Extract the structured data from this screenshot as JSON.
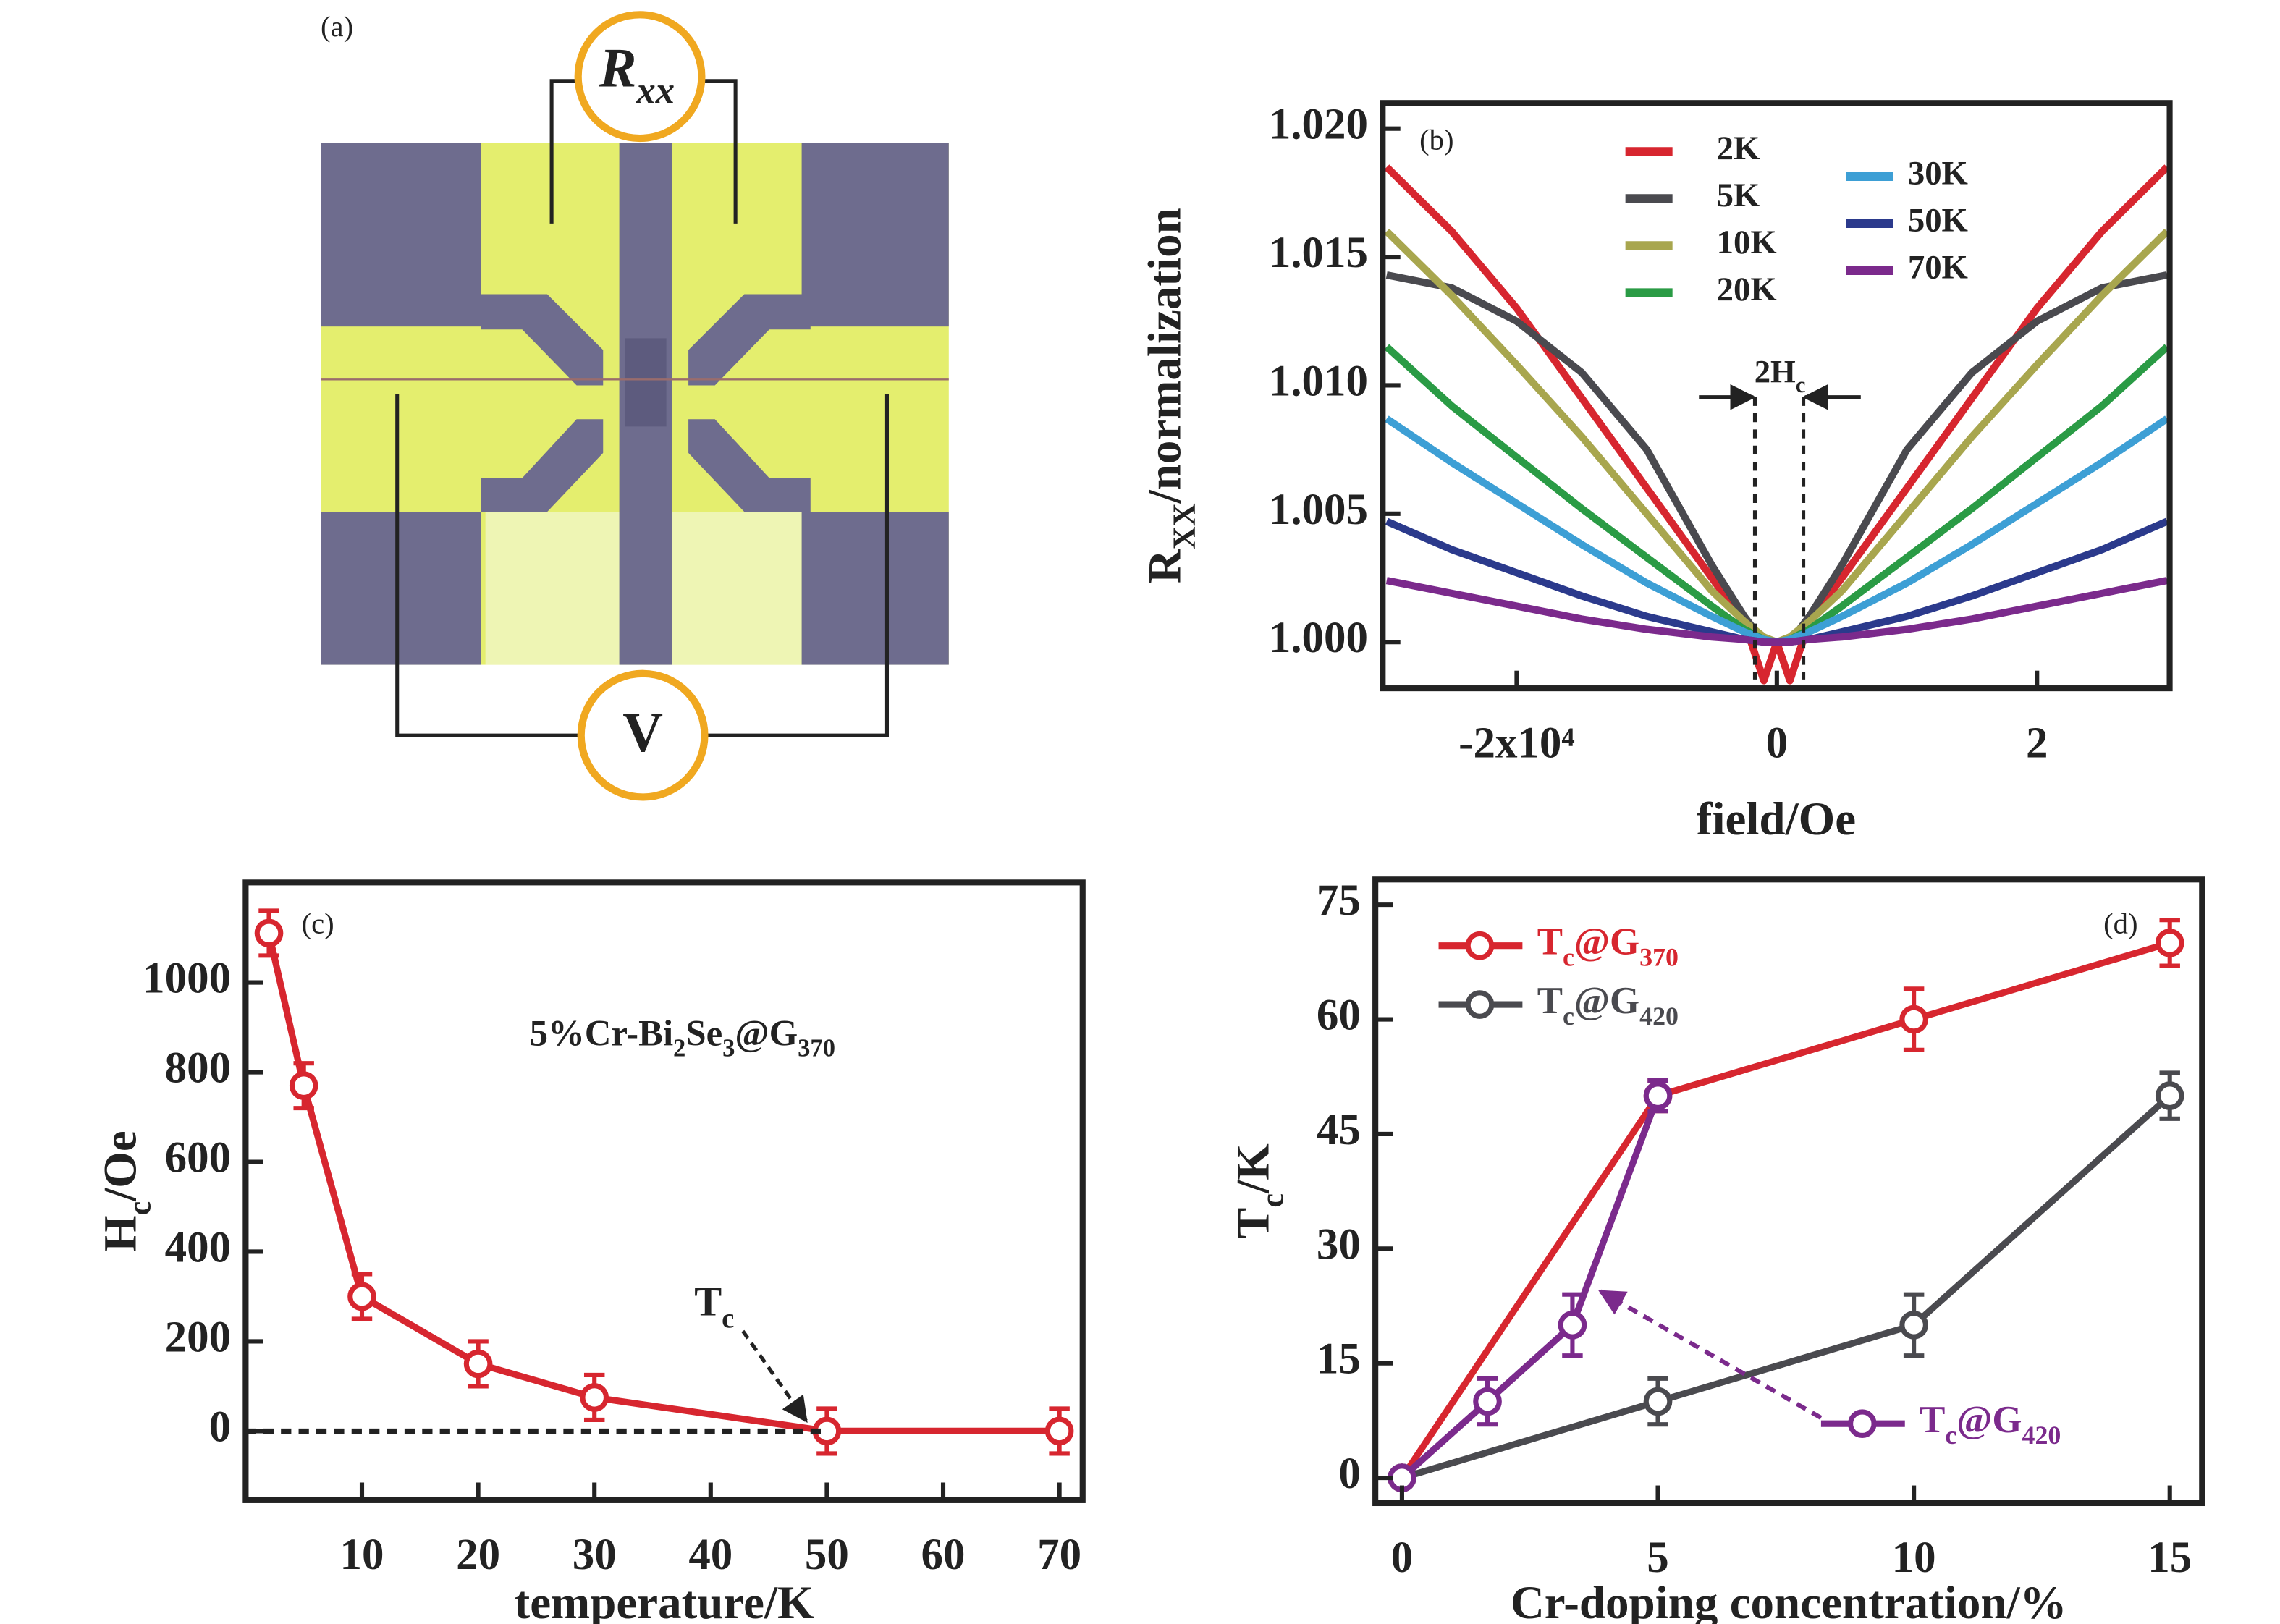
{
  "figure_a": {
    "panel_label": "(a)",
    "meters": [
      [
        "R",
        "xx"
      ],
      [
        "V"
      ]
    ]
  },
  "chart_data": [
    {
      "type": "line",
      "panel_label": "(b)",
      "xlabel": "field/Oe",
      "ylabel": [
        "R",
        "XX",
        "/normalization"
      ],
      "annotation": [
        "2H",
        "c"
      ],
      "xlim": [
        -30300,
        30200
      ],
      "ylim": [
        0.9982,
        1.021
      ],
      "xticks": [
        {
          "value": -20000,
          "label": "-2x10⁴"
        },
        0,
        {
          "value": 20000,
          "label": "2"
        }
      ],
      "yticks": [
        {
          "value": 1,
          "label": "1.000"
        },
        1.005,
        {
          "value": 1.01,
          "label": "1.010"
        },
        1.015,
        {
          "value": 1.02,
          "label": "1.020"
        }
      ],
      "x": [
        -30000,
        -25000,
        -20000,
        -15000,
        -10000,
        -5000,
        -2500,
        -1000,
        0,
        1000,
        2500,
        5000,
        10000,
        15000,
        20000,
        25000,
        30000
      ],
      "series": [
        {
          "name": "2K",
          "color": "#d7262f",
          "values": [
            1.0185,
            1.016,
            1.013,
            1.0095,
            1.006,
            1.0025,
            1.0008,
            0.9985,
            1.0,
            0.9985,
            1.0008,
            1.0025,
            1.006,
            1.0095,
            1.013,
            1.016,
            1.0185
          ]
        },
        {
          "name": "5K",
          "color": "#4a4a4f",
          "values": [
            1.0143,
            1.0138,
            1.0125,
            1.0105,
            1.0075,
            1.003,
            1.001,
            1.0,
            1.0,
            1.0,
            1.001,
            1.003,
            1.0075,
            1.0105,
            1.0125,
            1.0138,
            1.0143
          ]
        },
        {
          "name": "10K",
          "color": "#a8a64e",
          "values": [
            1.016,
            1.0135,
            1.0108,
            1.008,
            1.005,
            1.002,
            1.0008,
            1.0002,
            1.0,
            1.0002,
            1.0008,
            1.002,
            1.005,
            1.008,
            1.0108,
            1.0135,
            1.016
          ]
        },
        {
          "name": "20K",
          "color": "#2a9b45",
          "values": [
            1.0115,
            1.0092,
            1.0072,
            1.0052,
            1.0033,
            1.0014,
            1.0005,
            1.0001,
            1.0,
            1.0001,
            1.0005,
            1.0014,
            1.0033,
            1.0052,
            1.0072,
            1.0092,
            1.0115
          ]
        },
        {
          "name": "30K",
          "color": "#3d9fd5",
          "values": [
            1.0087,
            1.007,
            1.0054,
            1.0038,
            1.0023,
            1.001,
            1.0004,
            1.0001,
            1.0,
            1.0001,
            1.0004,
            1.001,
            1.0023,
            1.0038,
            1.0054,
            1.007,
            1.0087
          ]
        },
        {
          "name": "50K",
          "color": "#2b3a8c",
          "values": [
            1.0047,
            1.0036,
            1.0027,
            1.0018,
            1.001,
            1.0004,
            1.0001,
            1.0,
            1.0,
            1.0,
            1.0001,
            1.0004,
            1.001,
            1.0018,
            1.0027,
            1.0036,
            1.0047
          ]
        },
        {
          "name": "70K",
          "color": "#7b2a8c",
          "values": [
            1.0024,
            1.0019,
            1.0014,
            1.0009,
            1.0005,
            1.0002,
            1.0001,
            1.0,
            1.0,
            1.0,
            1.0001,
            1.0002,
            1.0005,
            1.0009,
            1.0014,
            1.0019,
            1.0024
          ]
        }
      ]
    },
    {
      "type": "errorbar_line",
      "panel_label": "(c)",
      "xlabel": "temperature/K",
      "ylabel": [
        "H",
        "c",
        "/Oe"
      ],
      "inset_label": [
        "5%Cr-Bi",
        "2",
        "Se",
        "3",
        "@G",
        "370"
      ],
      "annotation": [
        "T",
        "c"
      ],
      "reference_line": 0,
      "xlim": [
        0,
        72
      ],
      "ylim": [
        -154,
        1223
      ],
      "xticks": [
        10,
        20,
        30,
        40,
        50,
        60,
        70
      ],
      "yticks": [
        0,
        200,
        400,
        600,
        800,
        1000
      ],
      "series": [
        {
          "color": "#d7262f",
          "x": [
            2,
            5,
            10,
            20,
            30,
            50,
            70
          ],
          "values": [
            1110,
            770,
            300,
            150,
            75,
            0,
            0
          ],
          "errors": [
            50,
            50,
            50,
            50,
            50,
            50,
            50
          ]
        }
      ]
    },
    {
      "type": "errorbar_line",
      "panel_label": "(d)",
      "xlabel": "Cr-doping concentration/%",
      "ylabel": [
        "T",
        "c",
        "/K"
      ],
      "xlim": [
        -0.52,
        15.63
      ],
      "ylim": [
        -3.3,
        78.3
      ],
      "xticks": [
        0,
        5,
        10,
        15
      ],
      "yticks": [
        0,
        15,
        30,
        45,
        60,
        75
      ],
      "series": [
        {
          "name": [
            "T",
            "c",
            "@G",
            "370"
          ],
          "color": "#d7262f",
          "x": [
            0,
            5,
            10,
            15
          ],
          "values": [
            0,
            50,
            60,
            70
          ],
          "errors": [
            0,
            2,
            4,
            3
          ]
        },
        {
          "name": [
            "T",
            "c",
            "@G",
            "420"
          ],
          "color": "#4a4a4f",
          "x": [
            0,
            5,
            10,
            15
          ],
          "values": [
            0,
            10,
            20,
            50
          ],
          "errors": [
            0,
            3,
            4,
            3
          ]
        },
        {
          "name": [
            "T",
            "c",
            "@G",
            "420"
          ],
          "color": "#7b2a8c",
          "x": [
            0,
            1.67,
            3.33,
            5
          ],
          "values": [
            0,
            10,
            20,
            50
          ],
          "errors": [
            0,
            3,
            4,
            2
          ],
          "label_placement": "arrow"
        }
      ]
    }
  ]
}
